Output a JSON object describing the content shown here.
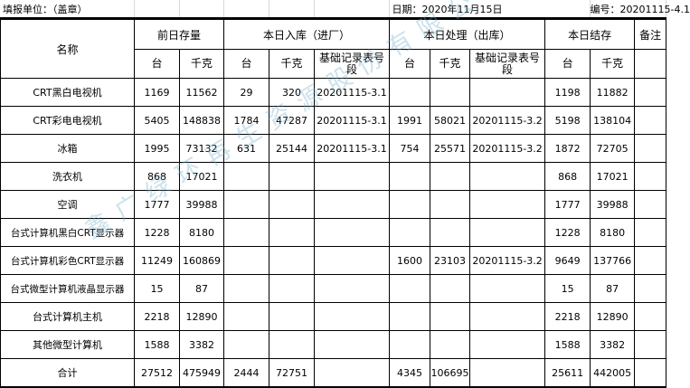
{
  "header": {
    "unit_label": "填报单位：（盖章）",
    "date_label": "日期：2020年11月15日",
    "number_label": "编号：20201115-4.1"
  },
  "columns": {
    "name": "名称",
    "groups": [
      "前日存量",
      "本日入库（进厂）",
      "本日处理（出库）",
      "本日结存",
      "备注"
    ],
    "sub": {
      "units": "台",
      "kg": "千克",
      "record": "基础记录表号段"
    }
  },
  "rows": [
    {
      "name": "CRT黑白电视机",
      "prev_units": "1169",
      "prev_kg": "11562",
      "in_units": "29",
      "in_kg": "320",
      "in_record": "20201115-3.1",
      "out_units": "",
      "out_kg": "",
      "out_record": "",
      "end_units": "1198",
      "end_kg": "11882",
      "note": ""
    },
    {
      "name": "CRT彩电电视机",
      "prev_units": "5405",
      "prev_kg": "148838",
      "in_units": "1784",
      "in_kg": "47287",
      "in_record": "20201115-3.1",
      "out_units": "1991",
      "out_kg": "58021",
      "out_record": "20201115-3.2",
      "end_units": "5198",
      "end_kg": "138104",
      "note": ""
    },
    {
      "name": "冰箱",
      "prev_units": "1995",
      "prev_kg": "73132",
      "in_units": "631",
      "in_kg": "25144",
      "in_record": "20201115-3.1",
      "out_units": "754",
      "out_kg": "25571",
      "out_record": "20201115-3.2",
      "end_units": "1872",
      "end_kg": "72705",
      "note": ""
    },
    {
      "name": "洗衣机",
      "prev_units": "868",
      "prev_kg": "17021",
      "in_units": "",
      "in_kg": "",
      "in_record": "",
      "out_units": "",
      "out_kg": "",
      "out_record": "",
      "end_units": "868",
      "end_kg": "17021",
      "note": ""
    },
    {
      "name": "空调",
      "prev_units": "1777",
      "prev_kg": "39988",
      "in_units": "",
      "in_kg": "",
      "in_record": "",
      "out_units": "",
      "out_kg": "",
      "out_record": "",
      "end_units": "1777",
      "end_kg": "39988",
      "note": ""
    },
    {
      "name": "台式计算机黑白CRT显示器",
      "prev_units": "1228",
      "prev_kg": "8180",
      "in_units": "",
      "in_kg": "",
      "in_record": "",
      "out_units": "",
      "out_kg": "",
      "out_record": "",
      "end_units": "1228",
      "end_kg": "8180",
      "note": ""
    },
    {
      "name": "台式计算机彩色CRT显示器",
      "prev_units": "11249",
      "prev_kg": "160869",
      "in_units": "",
      "in_kg": "",
      "in_record": "",
      "out_units": "1600",
      "out_kg": "23103",
      "out_record": "20201115-3.2",
      "end_units": "9649",
      "end_kg": "137766",
      "note": ""
    },
    {
      "name": "台式微型计算机液晶显示器",
      "prev_units": "15",
      "prev_kg": "87",
      "in_units": "",
      "in_kg": "",
      "in_record": "",
      "out_units": "",
      "out_kg": "",
      "out_record": "",
      "end_units": "15",
      "end_kg": "87",
      "note": ""
    },
    {
      "name": "台式计算机主机",
      "prev_units": "2218",
      "prev_kg": "12890",
      "in_units": "",
      "in_kg": "",
      "in_record": "",
      "out_units": "",
      "out_kg": "",
      "out_record": "",
      "end_units": "2218",
      "end_kg": "12890",
      "note": ""
    },
    {
      "name": "其他微型计算机",
      "prev_units": "1588",
      "prev_kg": "3382",
      "in_units": "",
      "in_kg": "",
      "in_record": "",
      "out_units": "",
      "out_kg": "",
      "out_record": "",
      "end_units": "1588",
      "end_kg": "3382",
      "note": ""
    },
    {
      "name": "合计",
      "prev_units": "27512",
      "prev_kg": "475949",
      "in_units": "2444",
      "in_kg": "72751",
      "in_record": "",
      "out_units": "4345",
      "out_kg": "106695",
      "out_record": "",
      "end_units": "25611",
      "end_kg": "442005",
      "note": ""
    }
  ],
  "watermark": "鑫广绿环再生资源股份有限公司",
  "colors": {
    "watermark": "#6eaac8",
    "grid": "#000000"
  }
}
